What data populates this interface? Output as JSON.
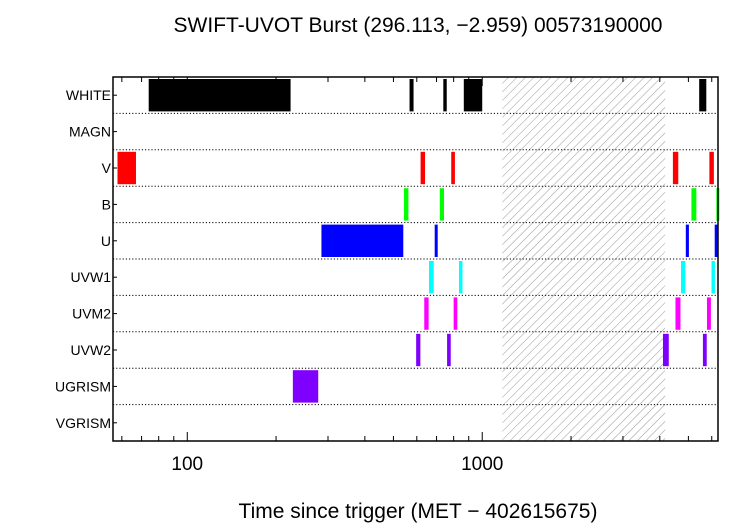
{
  "chart_data": {
    "type": "bar",
    "title": "SWIFT-UVOT Burst (296.113, −2.959) 00573190000",
    "xlabel": "Time since trigger (MET − 402615675)",
    "ylabel": "",
    "x_scale": "log",
    "xlim": [
      56,
      6300
    ],
    "x_ticks": [
      {
        "value": 100,
        "label": "100"
      },
      {
        "value": 1000,
        "label": "1000"
      }
    ],
    "categories": [
      "WHITE",
      "MAGN",
      "V",
      "B",
      "U",
      "UVW1",
      "UVM2",
      "UVW2",
      "UGRISM",
      "VGRISM"
    ],
    "hatched_interval": [
      1170,
      4170
    ],
    "series": [
      {
        "category": "WHITE",
        "color": "#000000",
        "intervals": [
          [
            74,
            224
          ],
          [
            567,
            585
          ],
          [
            738,
            758
          ],
          [
            866,
            1000
          ],
          [
            5440,
            5750
          ]
        ]
      },
      {
        "category": "MAGN",
        "color": "#000000",
        "intervals": []
      },
      {
        "category": "V",
        "color": "#ff0000",
        "intervals": [
          [
            58,
            67
          ],
          [
            618,
            640
          ],
          [
            785,
            808
          ],
          [
            4430,
            4620
          ],
          [
            5890,
            6100
          ]
        ]
      },
      {
        "category": "B",
        "color": "#00ff00",
        "intervals": [
          [
            543,
            562
          ],
          [
            718,
            742
          ],
          [
            5120,
            5320
          ],
          [
            6220,
            6300
          ]
        ]
      },
      {
        "category": "U",
        "color": "#0000ff",
        "intervals": [
          [
            285,
            540
          ],
          [
            690,
            706
          ],
          [
            4900,
            5020
          ],
          [
            6140,
            6250
          ]
        ]
      },
      {
        "category": "UVW1",
        "color": "#00ffff",
        "intervals": [
          [
            660,
            685
          ],
          [
            834,
            857
          ],
          [
            4720,
            4880
          ],
          [
            5990,
            6150
          ]
        ]
      },
      {
        "category": "UVM2",
        "color": "#ff00ff",
        "intervals": [
          [
            636,
            658
          ],
          [
            800,
            823
          ],
          [
            4520,
            4700
          ],
          [
            5780,
            5960
          ]
        ]
      },
      {
        "category": "UVW2",
        "color": "#8000ff",
        "intervals": [
          [
            597,
            617
          ],
          [
            760,
            782
          ],
          [
            4100,
            4290
          ],
          [
            5600,
            5770
          ]
        ]
      },
      {
        "category": "UGRISM",
        "color": "#8000ff",
        "intervals": [
          [
            228,
            278
          ]
        ]
      },
      {
        "category": "VGRISM",
        "color": "#000000",
        "intervals": []
      }
    ]
  }
}
